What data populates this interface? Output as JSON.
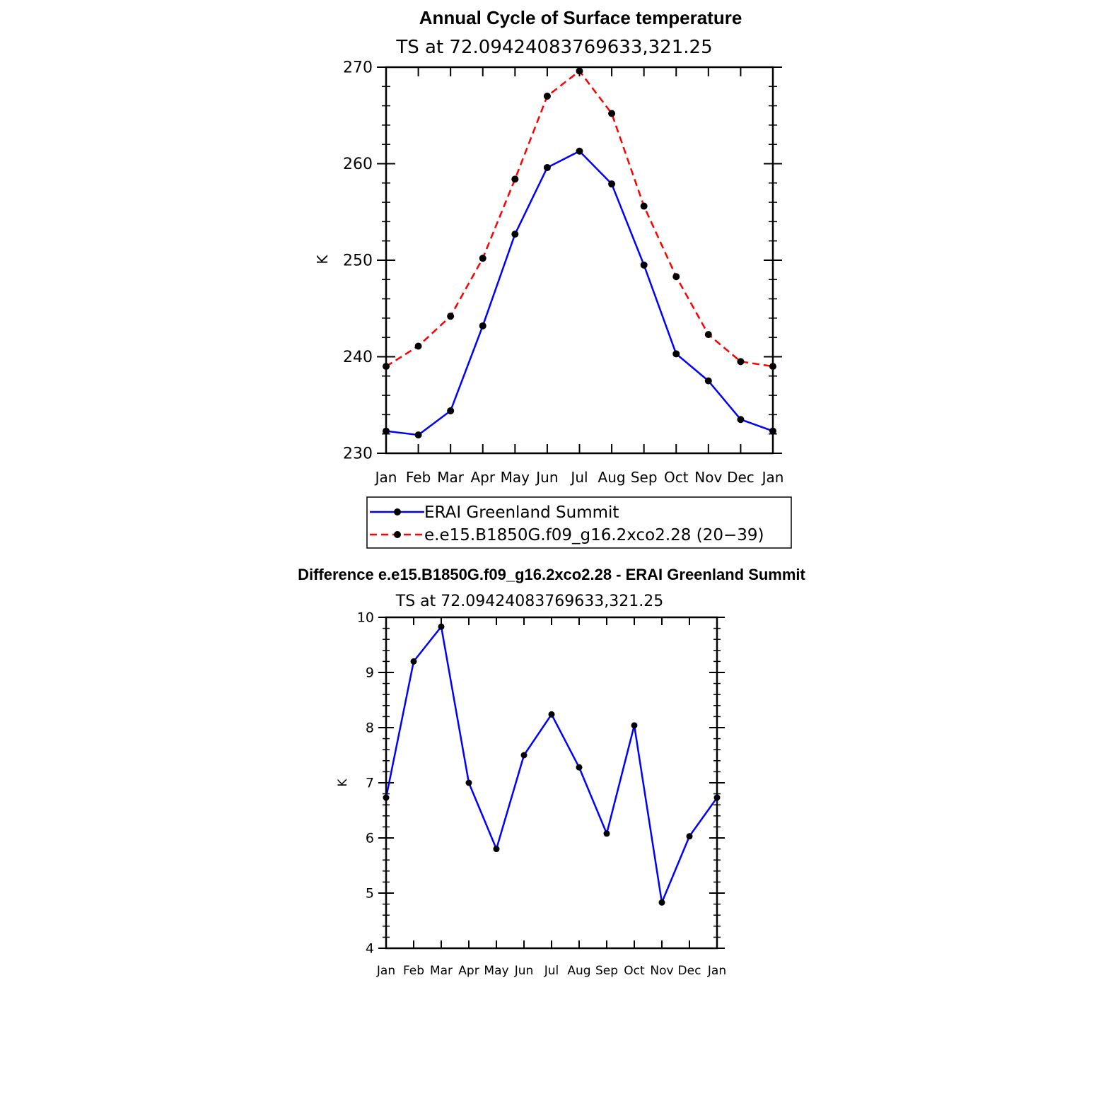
{
  "chart_data": [
    {
      "type": "line",
      "title": "Annual Cycle of Surface temperature",
      "subtitle": "TS at 72.09424083769633,321.25",
      "xlabel": "",
      "ylabel": "K",
      "categories": [
        "Jan",
        "Feb",
        "Mar",
        "Apr",
        "May",
        "Jun",
        "Jul",
        "Aug",
        "Sep",
        "Oct",
        "Nov",
        "Dec",
        "Jan"
      ],
      "ylim": [
        230,
        270
      ],
      "yticks": [
        230,
        240,
        250,
        260,
        270
      ],
      "grid": false,
      "legend_position": "bottom",
      "series": [
        {
          "name": "ERAI Greenland Summit",
          "color": "#0000ff",
          "dash": "solid",
          "values": [
            232.3,
            231.9,
            234.4,
            243.2,
            252.7,
            259.6,
            261.3,
            257.9,
            249.5,
            240.3,
            237.5,
            233.5,
            232.3
          ]
        },
        {
          "name": "e.e15.B1850G.f09_g16.2xco2.28 (20−39)",
          "color": "#ff0000",
          "dash": "dashed",
          "values": [
            239.0,
            241.1,
            244.2,
            250.2,
            258.4,
            267.0,
            269.6,
            265.2,
            255.6,
            248.3,
            242.3,
            239.5,
            239.0
          ]
        }
      ]
    },
    {
      "type": "line",
      "title": "Difference e.e15.B1850G.f09_g16.2xco2.28 - ERAI Greenland Summit",
      "subtitle": "TS at 72.09424083769633,321.25",
      "xlabel": "",
      "ylabel": "K",
      "categories": [
        "Jan",
        "Feb",
        "Mar",
        "Apr",
        "May",
        "Jun",
        "Jul",
        "Aug",
        "Sep",
        "Oct",
        "Nov",
        "Dec",
        "Jan"
      ],
      "ylim": [
        4,
        10
      ],
      "yticks": [
        4,
        5,
        6,
        7,
        8,
        9,
        10
      ],
      "grid": false,
      "series": [
        {
          "color": "#0000ff",
          "dash": "solid",
          "values": [
            6.73,
            9.2,
            9.83,
            7.0,
            5.8,
            7.5,
            8.24,
            7.28,
            6.08,
            8.04,
            4.83,
            6.03,
            6.73
          ]
        }
      ]
    }
  ]
}
